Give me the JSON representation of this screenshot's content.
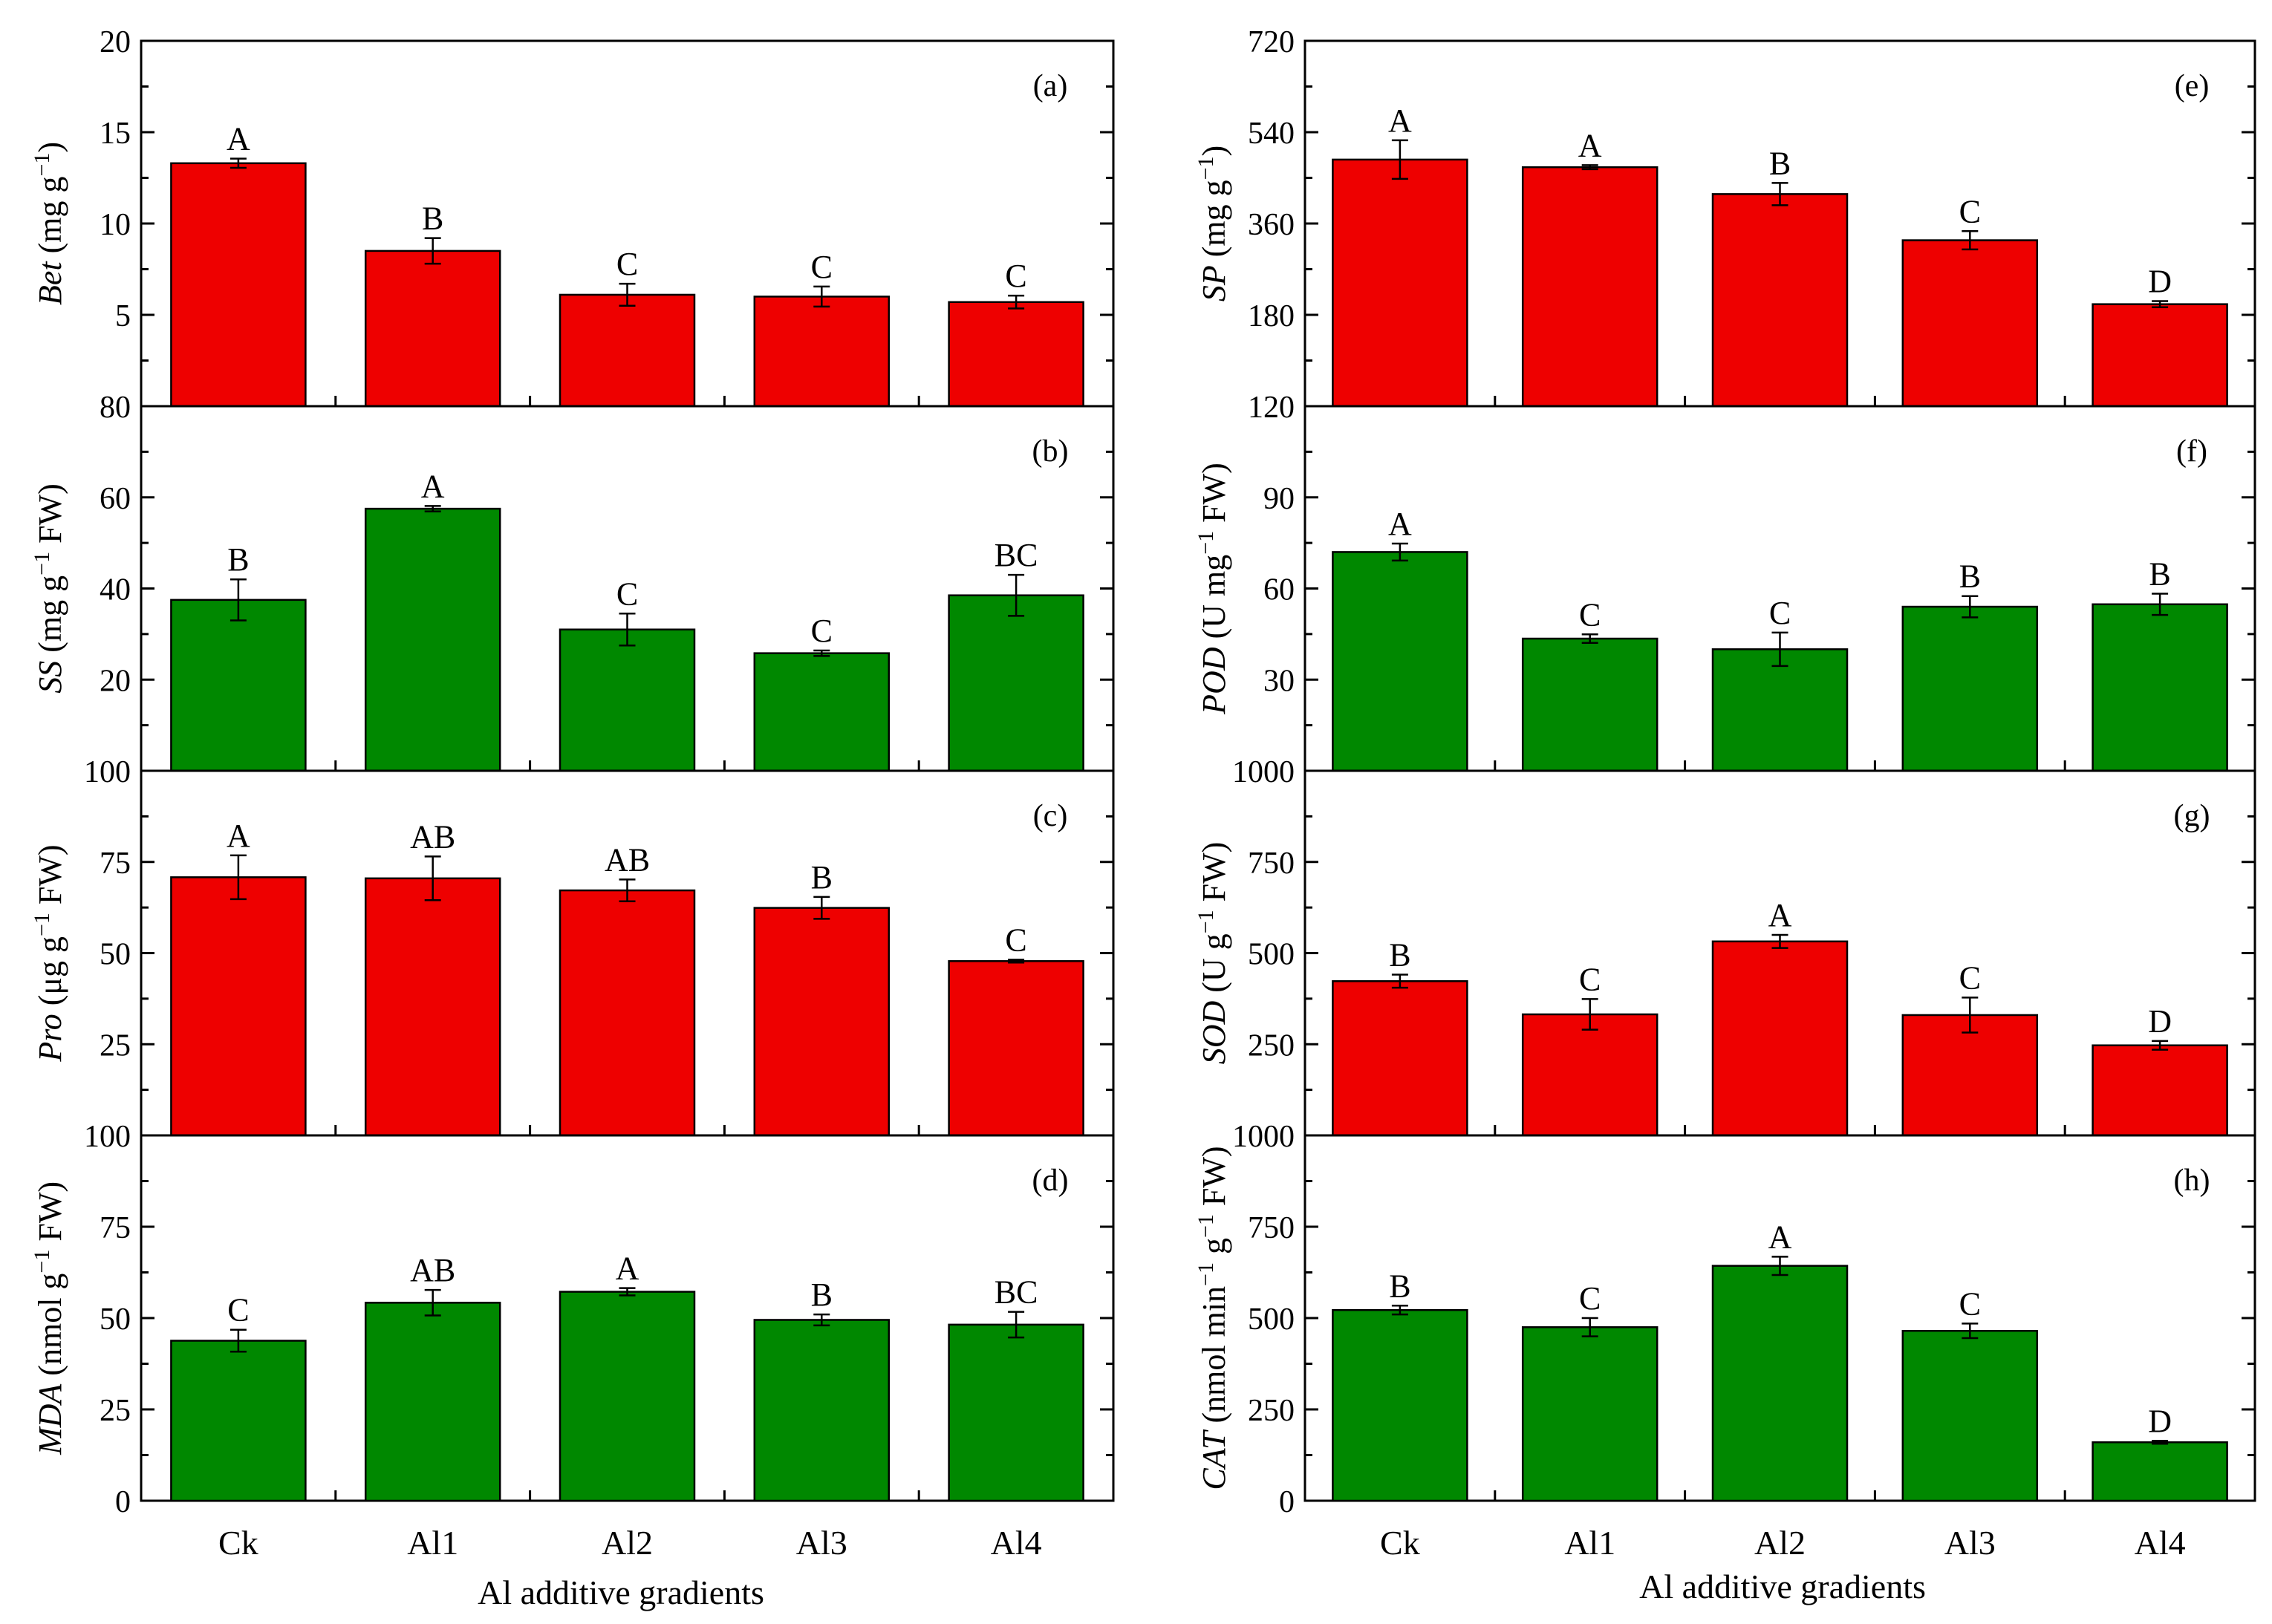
{
  "chart_data": {
    "type": "bar",
    "categories": [
      "Ck",
      "Al1",
      "Al2",
      "Al3",
      "Al4"
    ],
    "x_title": "Al additive gradients",
    "colors": {
      "red": "#ee0000",
      "green": "#008800"
    },
    "panels": [
      {
        "id": "a",
        "label": "(a)",
        "ylabel_italic": "Bet",
        "ylabel_unit": " (mg g",
        "ylabel_sup": "−1",
        "ylabel_tail": ")",
        "color": "red",
        "ylim": [
          0,
          20
        ],
        "yticks": [
          5,
          10,
          15,
          20
        ],
        "bottom_tick_label": "80",
        "values": [
          13.3,
          8.5,
          6.1,
          6.0,
          5.7
        ],
        "errors": [
          0.25,
          0.7,
          0.6,
          0.55,
          0.35
        ],
        "letters": [
          "A",
          "B",
          "C",
          "C",
          "C"
        ]
      },
      {
        "id": "b",
        "label": "(b)",
        "ylabel_italic": "SS",
        "ylabel_unit": " (mg g",
        "ylabel_sup": "−1",
        "ylabel_tail": " FW)",
        "color": "green",
        "ylim": [
          0,
          80
        ],
        "yticks": [
          20,
          40,
          60
        ],
        "bottom_tick_label": "100",
        "values": [
          37.5,
          57.5,
          31.0,
          25.8,
          38.5
        ],
        "errors": [
          4.5,
          0.6,
          3.5,
          0.6,
          4.5
        ],
        "letters": [
          "B",
          "A",
          "C",
          "C",
          "BC"
        ]
      },
      {
        "id": "c",
        "label": "(c)",
        "ylabel_italic": "Pro",
        "ylabel_unit": " (μg g",
        "ylabel_sup": "−1",
        "ylabel_tail": " FW)",
        "color": "red",
        "ylim": [
          0,
          100
        ],
        "yticks": [
          25,
          50,
          75
        ],
        "bottom_tick_label": "100",
        "values": [
          70.8,
          70.5,
          67.2,
          62.4,
          47.8
        ],
        "errors": [
          6.0,
          6.0,
          3.0,
          3.0,
          0.4
        ],
        "letters": [
          "A",
          "AB",
          "AB",
          "B",
          "C"
        ]
      },
      {
        "id": "d",
        "label": "(d)",
        "ylabel_italic": "MDA",
        "ylabel_unit": " (nmol g",
        "ylabel_sup": "−1",
        "ylabel_tail": " FW)",
        "color": "green",
        "ylim": [
          0,
          100
        ],
        "yticks": [
          0,
          25,
          50,
          75
        ],
        "bottom_tick_label": "0",
        "values": [
          43.8,
          54.2,
          57.2,
          49.5,
          48.2
        ],
        "errors": [
          3.0,
          3.5,
          1.0,
          1.5,
          3.5
        ],
        "letters": [
          "C",
          "AB",
          "A",
          "B",
          "BC"
        ]
      },
      {
        "id": "e",
        "label": "(e)",
        "ylabel_italic": "SP",
        "ylabel_unit": " (mg g",
        "ylabel_sup": "−1",
        "ylabel_tail": ")",
        "color": "red",
        "ylim": [
          0,
          720
        ],
        "yticks": [
          180,
          360,
          540,
          720
        ],
        "bottom_tick_label": "120",
        "values": [
          486,
          471,
          418,
          327,
          201
        ],
        "errors": [
          38,
          4,
          22,
          18,
          6
        ],
        "letters": [
          "A",
          "A",
          "B",
          "C",
          "D"
        ]
      },
      {
        "id": "f",
        "label": "(f)",
        "ylabel_italic": "POD",
        "ylabel_unit": " (U mg",
        "ylabel_sup": "−1",
        "ylabel_tail": " FW)",
        "color": "green",
        "ylim": [
          0,
          120
        ],
        "yticks": [
          30,
          60,
          90
        ],
        "bottom_tick_label": "1000",
        "values": [
          72.0,
          43.5,
          40.0,
          54.0,
          54.8
        ],
        "errors": [
          2.8,
          1.4,
          5.5,
          3.5,
          3.5
        ],
        "letters": [
          "A",
          "C",
          "C",
          "B",
          "B"
        ]
      },
      {
        "id": "g",
        "label": "(g)",
        "ylabel_italic": "SOD",
        "ylabel_unit": " (U g",
        "ylabel_sup": "−1",
        "ylabel_tail": " FW)",
        "color": "red",
        "ylim": [
          0,
          1000
        ],
        "yticks": [
          250,
          500,
          750
        ],
        "bottom_tick_label": "1000",
        "values": [
          423,
          332,
          532,
          330,
          247
        ],
        "errors": [
          18,
          42,
          18,
          48,
          12
        ],
        "letters": [
          "B",
          "C",
          "A",
          "C",
          "D"
        ]
      },
      {
        "id": "h",
        "label": "(h)",
        "ylabel_italic": "CAT",
        "ylabel_unit": " (nmol min",
        "ylabel_sup": "−1",
        "ylabel_mid": " g",
        "ylabel_sup2": "−1",
        "ylabel_tail": " FW)",
        "color": "green",
        "ylim": [
          0,
          1000
        ],
        "yticks": [
          0,
          250,
          500,
          750
        ],
        "bottom_tick_label": "0",
        "values": [
          522,
          475,
          643,
          465,
          160
        ],
        "errors": [
          12,
          25,
          25,
          20,
          4
        ],
        "letters": [
          "B",
          "C",
          "A",
          "C",
          "D"
        ]
      }
    ]
  }
}
